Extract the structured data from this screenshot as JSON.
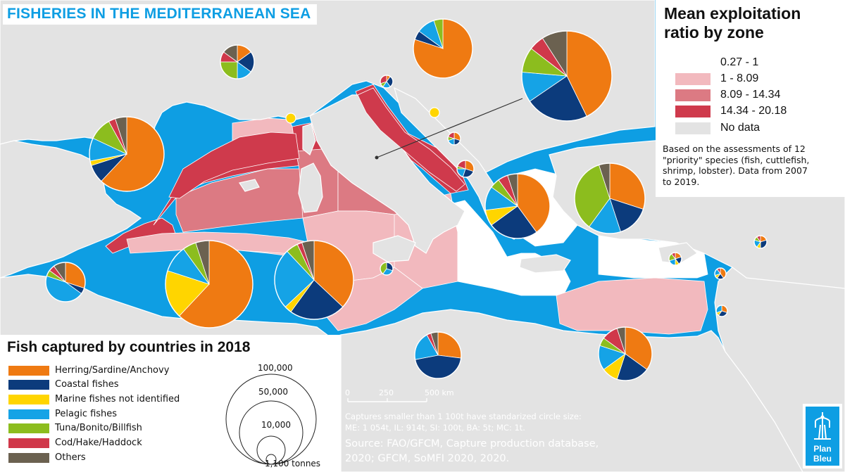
{
  "title": "FISHERIES IN THE MEDITERRANEAN SEA",
  "zone_legend": {
    "title_line1": "Mean exploitation",
    "title_line2": "ratio by zone",
    "items": [
      {
        "label": "0.27 - 1",
        "color": "#ffffff"
      },
      {
        "label": "1 - 8.09",
        "color": "#f2b9be"
      },
      {
        "label": "8.09 - 14.34",
        "color": "#dc7a83"
      },
      {
        "label": "14.34 - 20.18",
        "color": "#cf3a4c"
      },
      {
        "label": "No data",
        "color": "#e3e3e3"
      }
    ],
    "note_lines": [
      "Based on the assessments of 12",
      "\"priority\" species (fish, cuttlefish,",
      "shrimp, lobster). Data from 2007",
      "to 2019."
    ]
  },
  "fish_legend": {
    "title": "Fish captured by countries in 2018",
    "categories": [
      {
        "label": "Herring/Sardine/Anchovy",
        "color": "#ef7a12"
      },
      {
        "label": "Coastal fishes",
        "color": "#0c3b7c"
      },
      {
        "label": "Marine fishes not identified",
        "color": "#ffd500"
      },
      {
        "label": "Pelagic fishes",
        "color": "#15a3e6"
      },
      {
        "label": "Tuna/Bonito/Billfish",
        "color": "#8cbd1e"
      },
      {
        "label": "Cod/Hake/Haddock",
        "color": "#d0384a"
      },
      {
        "label": "Others",
        "color": "#6b6150"
      }
    ],
    "size_labels": [
      "100,000",
      "50,000",
      "10,000",
      "1,100 tonnes"
    ]
  },
  "scale_bar": {
    "labels": [
      "0",
      "250",
      "500 km"
    ]
  },
  "note_lines": [
    "Captures smaller than 1 100t have standarized circle size:",
    "ME: 1 054t, IL: 914t, SI: 100t, BA: 5t; MC: 1t."
  ],
  "source_lines": [
    "Source: FAO/GFCM, Capture production database,",
    "2020; GFCM, SoMFI 2020, 2020."
  ],
  "logo": {
    "line1": "Plan",
    "line2": "Bleu"
  },
  "colors": {
    "sea": "#0e9ee3",
    "land": "#e3e3e3"
  },
  "pies": [
    {
      "name": "pie-france-north",
      "values": [
        15,
        20,
        0,
        15,
        25,
        10,
        15
      ]
    },
    {
      "name": "pie-slovenia",
      "values": [
        10,
        30,
        0,
        20,
        10,
        30,
        0
      ]
    },
    {
      "name": "pie-italy-north",
      "values": [
        80,
        5,
        0,
        10,
        5,
        0,
        0
      ]
    },
    {
      "name": "pie-croatia",
      "values": [
        47,
        25,
        0,
        12,
        10,
        6,
        10
      ]
    },
    {
      "name": "pie-spain-north",
      "values": [
        62,
        8,
        2,
        10,
        10,
        3,
        5
      ]
    },
    {
      "name": "pie-montenegro",
      "values": [
        30,
        20,
        0,
        20,
        10,
        20,
        0
      ]
    },
    {
      "name": "pie-albania",
      "values": [
        30,
        25,
        0,
        20,
        5,
        20,
        0
      ]
    },
    {
      "name": "pie-greece",
      "values": [
        40,
        25,
        8,
        12,
        5,
        5,
        5
      ]
    },
    {
      "name": "pie-turkey",
      "values": [
        30,
        15,
        0,
        15,
        35,
        0,
        5
      ]
    },
    {
      "name": "pie-cyprus",
      "values": [
        20,
        20,
        10,
        20,
        20,
        10,
        0
      ]
    },
    {
      "name": "pie-spain-south",
      "values": [
        30,
        5,
        0,
        45,
        5,
        5,
        10
      ]
    },
    {
      "name": "pie-algeria",
      "values": [
        62,
        0,
        18,
        10,
        5,
        0,
        5
      ]
    },
    {
      "name": "pie-tunisia",
      "values": [
        37,
        23,
        3,
        25,
        5,
        2,
        5
      ]
    },
    {
      "name": "pie-malta",
      "values": [
        0,
        30,
        0,
        30,
        40,
        0,
        0
      ]
    },
    {
      "name": "pie-lebanon",
      "values": [
        20,
        30,
        10,
        20,
        10,
        10,
        0
      ]
    },
    {
      "name": "pie-israel",
      "values": [
        40,
        20,
        10,
        20,
        0,
        10,
        0
      ]
    },
    {
      "name": "pie-gaza",
      "values": [
        30,
        30,
        10,
        30,
        0,
        0,
        0
      ]
    },
    {
      "name": "pie-libya",
      "values": [
        27,
        45,
        0,
        20,
        0,
        3,
        5
      ]
    },
    {
      "name": "pie-egypt",
      "values": [
        35,
        20,
        10,
        15,
        5,
        10,
        5
      ]
    }
  ]
}
